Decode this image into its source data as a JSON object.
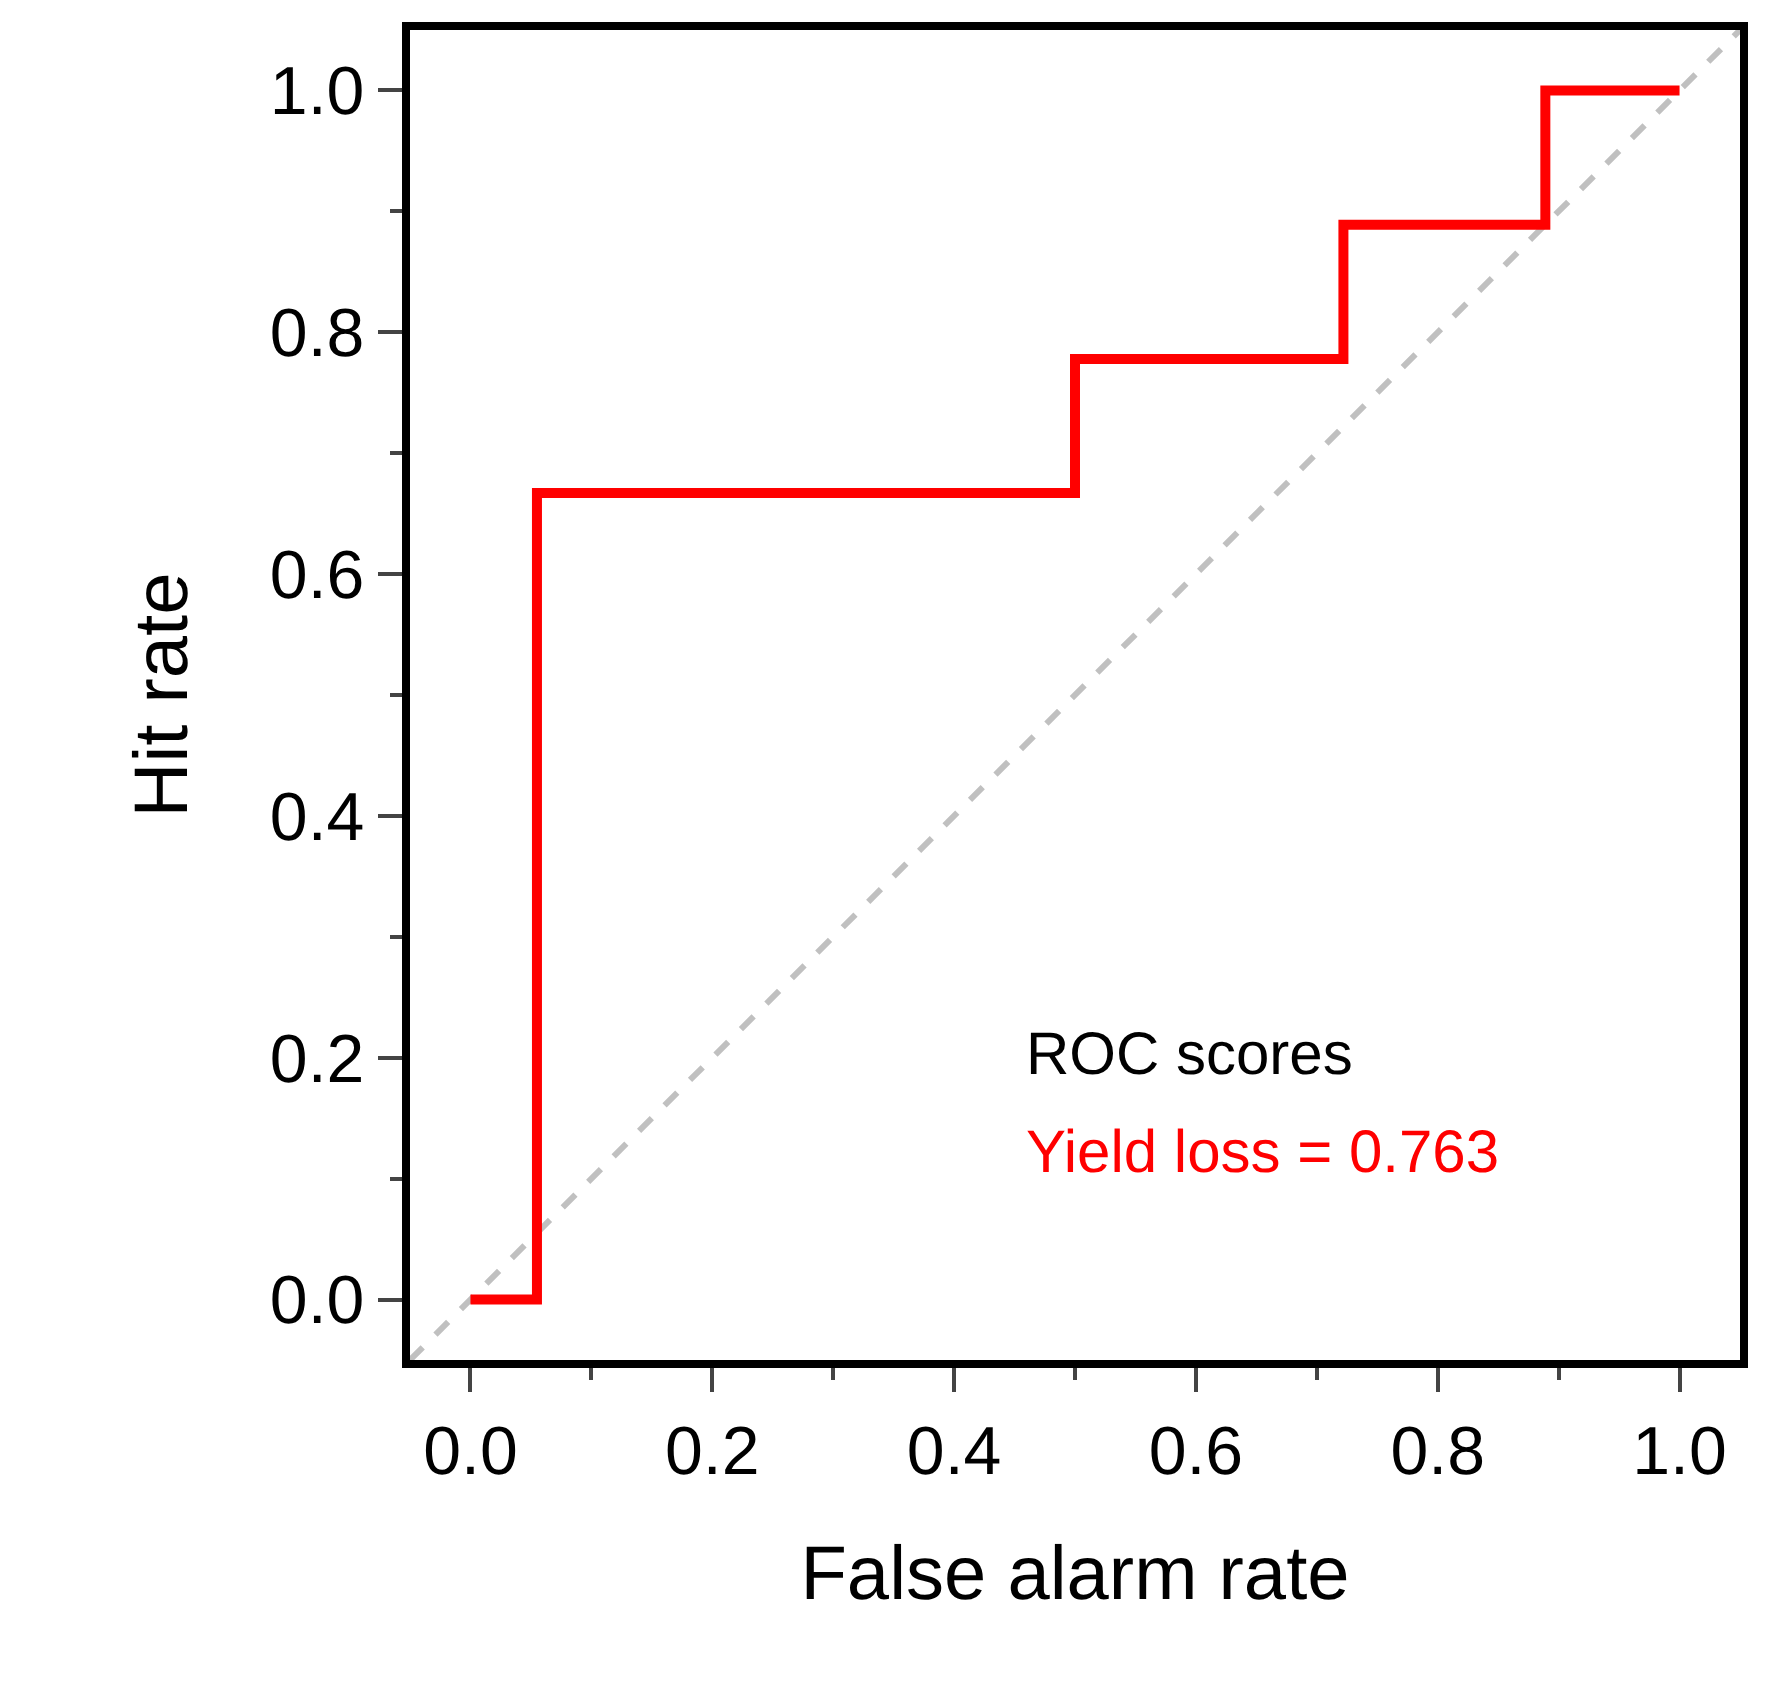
{
  "chart_data": {
    "type": "step",
    "xlabel": "False alarm rate",
    "ylabel": "Hit rate",
    "xlim": [
      -0.05,
      1.05
    ],
    "ylim": [
      -0.05,
      1.05
    ],
    "xticks": [
      {
        "value": 0,
        "label": "0.0"
      },
      {
        "value": 0.2,
        "label": "0.2"
      },
      {
        "value": 0.4,
        "label": "0.4"
      },
      {
        "value": 0.6,
        "label": "0.6"
      },
      {
        "value": 0.8,
        "label": "0.8"
      },
      {
        "value": 1,
        "label": "1.0"
      }
    ],
    "yticks": [
      {
        "value": 0,
        "label": "0.0"
      },
      {
        "value": 0.2,
        "label": "0.2"
      },
      {
        "value": 0.4,
        "label": "0.4"
      },
      {
        "value": 0.6,
        "label": "0.6"
      },
      {
        "value": 0.8,
        "label": "0.8"
      },
      {
        "value": 1,
        "label": "1.0"
      }
    ],
    "marker": "none",
    "series": [
      {
        "color": "#ff0000",
        "x": [
          0,
          0.055,
          0.5,
          0.722,
          0.889,
          1
        ],
        "values": [
          0,
          0.667,
          0.778,
          0.889,
          1,
          1
        ],
        "line_style": "solid"
      },
      {
        "type": "line",
        "color": "#c0c0c0",
        "x": [
          -0.05,
          1.05
        ],
        "values": [
          -0.05,
          1.05
        ],
        "line_style": "dashed"
      }
    ],
    "annotations": [
      "ROC scores",
      "Yield loss = 0.763"
    ]
  }
}
